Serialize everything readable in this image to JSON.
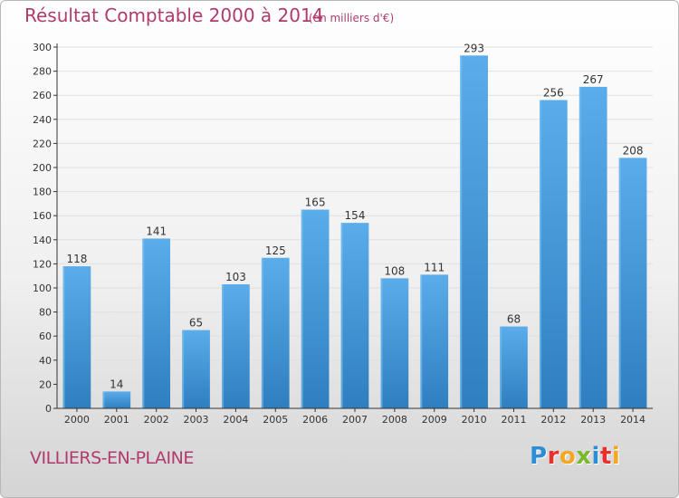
{
  "header": {
    "title": "Résultat Comptable 2000 à 2014",
    "subtitle": "(en milliers d'€)"
  },
  "footer": {
    "city": "VILLIERS-EN-PLAINE",
    "logo_text": "Proxiti",
    "logo_letters": [
      {
        "ch": "P",
        "color": "#2c8fd6"
      },
      {
        "ch": "r",
        "color": "#e8302d"
      },
      {
        "ch": "o",
        "color": "#f5a623"
      },
      {
        "ch": "x",
        "color": "#7ab929"
      },
      {
        "ch": "i",
        "color": "#2c8fd6"
      },
      {
        "ch": "t",
        "color": "#e8302d"
      },
      {
        "ch": "i",
        "color": "#f5a623"
      }
    ]
  },
  "colors": {
    "accent": "#b03a6e",
    "bar_top": "#5aacea",
    "bar_bottom": "#2f7fc0",
    "grid": "#e0e0e0",
    "axis": "#333333"
  },
  "chart_data": {
    "type": "bar",
    "title": "Résultat Comptable 2000 à 2014",
    "subtitle": "(en milliers d'€)",
    "xlabel": "",
    "ylabel": "",
    "categories": [
      "2000",
      "2001",
      "2002",
      "2003",
      "2004",
      "2005",
      "2006",
      "2007",
      "2008",
      "2009",
      "2010",
      "2011",
      "2012",
      "2013",
      "2014"
    ],
    "values": [
      118,
      14,
      141,
      65,
      103,
      125,
      165,
      154,
      108,
      111,
      293,
      68,
      256,
      267,
      208
    ],
    "ylim": [
      0,
      300
    ],
    "yticks": [
      0,
      20,
      40,
      60,
      80,
      100,
      120,
      140,
      160,
      180,
      200,
      220,
      240,
      260,
      280,
      300
    ],
    "grid": true,
    "data_labels": true
  }
}
